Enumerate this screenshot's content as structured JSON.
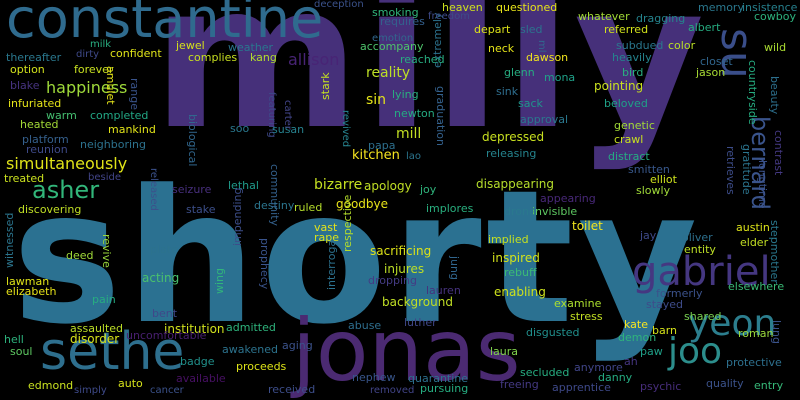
{
  "words": [
    {
      "text": "milly",
      "color": "#46307a"
    },
    {
      "text": "shorty",
      "color": "#2b7191"
    },
    {
      "text": "jonas",
      "color": "#4b2a72"
    },
    {
      "text": "constantine",
      "color": "#2f6b8e"
    },
    {
      "text": "sethe",
      "color": "#2e6f8e"
    },
    {
      "text": "gabriel",
      "color": "#453781"
    },
    {
      "text": "yeon",
      "color": "#2c7e8e"
    },
    {
      "text": "joo",
      "color": "#2c8e8c"
    },
    {
      "text": "su",
      "color": "#3a4e8a"
    },
    {
      "text": "asher",
      "color": "#32b67a"
    },
    {
      "text": "bernard",
      "color": "#3a548c"
    },
    {
      "text": "happiness",
      "color": "#9fda3a"
    },
    {
      "text": "simultaneously",
      "color": "#dfe318"
    },
    {
      "text": "allison",
      "color": "#482475"
    },
    {
      "text": "reality",
      "color": "#bddf26"
    },
    {
      "text": "sin",
      "color": "#e5e419"
    },
    {
      "text": "mill",
      "color": "#c2df23"
    },
    {
      "text": "kitchen",
      "color": "#f6e620"
    },
    {
      "text": "bizarre",
      "color": "#c5e021"
    },
    {
      "text": "apology",
      "color": "#c0df25"
    },
    {
      "text": "goodbye",
      "color": "#e8e419"
    },
    {
      "text": "depressed",
      "color": "#c8e020"
    },
    {
      "text": "disappearing",
      "color": "#b5de2b"
    },
    {
      "text": "invisible",
      "color": "#5ec962"
    },
    {
      "text": "toilet",
      "color": "#f1e51d"
    },
    {
      "text": "inspired",
      "color": "#d2e21b"
    },
    {
      "text": "sacrificing",
      "color": "#dde318"
    },
    {
      "text": "stress",
      "color": "#c2df23"
    },
    {
      "text": "disorder",
      "color": "#d8e219"
    },
    {
      "text": "treated",
      "color": "#cae11f"
    },
    {
      "text": "lawman",
      "color": "#dfe318"
    },
    {
      "text": "elizabeth",
      "color": "#e7e419"
    },
    {
      "text": "assaulted",
      "color": "#bddf26"
    },
    {
      "text": "institution",
      "color": "#d0e11c"
    },
    {
      "text": "acting",
      "color": "#4ac16d"
    },
    {
      "text": "pain",
      "color": "#27ad81"
    },
    {
      "text": "deed",
      "color": "#a0da39"
    },
    {
      "text": "heaven",
      "color": "#cde11d"
    },
    {
      "text": "smoking",
      "color": "#31b57b"
    },
    {
      "text": "questioned",
      "color": "#e7e419"
    },
    {
      "text": "whatever",
      "color": "#a2da37"
    },
    {
      "text": "dragging",
      "color": "#25848e"
    },
    {
      "text": "memory",
      "color": "#2a788e"
    },
    {
      "text": "insistence",
      "color": "#26818e"
    },
    {
      "text": "cowboy",
      "color": "#2db27d"
    },
    {
      "text": "albert",
      "color": "#26ad81"
    },
    {
      "text": "referred",
      "color": "#d2e21b"
    },
    {
      "text": "color",
      "color": "#bbdf27"
    },
    {
      "text": "wild",
      "color": "#aadc32"
    },
    {
      "text": "subdued",
      "color": "#2a778e"
    },
    {
      "text": "heavily",
      "color": "#25848e"
    },
    {
      "text": "closet",
      "color": "#31668e"
    },
    {
      "text": "jason",
      "color": "#a8db34"
    },
    {
      "text": "bird",
      "color": "#29af7f"
    },
    {
      "text": "countryside",
      "color": "#26ad81"
    },
    {
      "text": "beauty",
      "color": "#2d708e"
    },
    {
      "text": "pointing",
      "color": "#cae11f"
    },
    {
      "text": "beloved",
      "color": "#1fa187"
    },
    {
      "text": "genetic",
      "color": "#a2da37"
    },
    {
      "text": "crawl",
      "color": "#c8e020"
    },
    {
      "text": "distract",
      "color": "#25ac82"
    },
    {
      "text": "smitten",
      "color": "#38588c"
    },
    {
      "text": "elliot",
      "color": "#cde11d"
    },
    {
      "text": "slowly",
      "color": "#a0da39"
    },
    {
      "text": "retrieves",
      "color": "#3d4d8a"
    },
    {
      "text": "gratitude",
      "color": "#2b748e"
    },
    {
      "text": "longtime",
      "color": "#3b528b"
    },
    {
      "text": "contrast",
      "color": "#443983"
    },
    {
      "text": "austin",
      "color": "#dce319"
    },
    {
      "text": "elder",
      "color": "#c2df23"
    },
    {
      "text": "stepmother",
      "color": "#2a788e"
    },
    {
      "text": "oliver",
      "color": "#2d708e"
    },
    {
      "text": "entity",
      "color": "#bddf26"
    },
    {
      "text": "jay",
      "color": "#3e4a89"
    },
    {
      "text": "elsewhere",
      "color": "#3aba76"
    },
    {
      "text": "formerly",
      "color": "#3b528b"
    },
    {
      "text": "stayed",
      "color": "#3e4c8a"
    },
    {
      "text": "shared",
      "color": "#7ad151"
    },
    {
      "text": "kate",
      "color": "#f8e621"
    },
    {
      "text": "barn",
      "color": "#d5e21a"
    },
    {
      "text": "demon",
      "color": "#2fb47c"
    },
    {
      "text": "lung",
      "color": "#3a538b"
    },
    {
      "text": "roman",
      "color": "#9bd93c"
    },
    {
      "text": "protective",
      "color": "#2d708e"
    },
    {
      "text": "paw",
      "color": "#1fa088"
    },
    {
      "text": "ah",
      "color": "#453581"
    },
    {
      "text": "quality",
      "color": "#3b528b"
    },
    {
      "text": "entry",
      "color": "#36b878"
    },
    {
      "text": "psychic",
      "color": "#472d7b"
    },
    {
      "text": "danny",
      "color": "#25ab82"
    },
    {
      "text": "apprentice",
      "color": "#3e4989"
    },
    {
      "text": "anymore",
      "color": "#404588"
    },
    {
      "text": "secluded",
      "color": "#27ad81"
    },
    {
      "text": "freeing",
      "color": "#443983"
    },
    {
      "text": "laura",
      "color": "#81d34d"
    },
    {
      "text": "disgusted",
      "color": "#21908d"
    },
    {
      "text": "examine",
      "color": "#ade02f"
    },
    {
      "text": "enabling",
      "color": "#cde11d"
    },
    {
      "text": "rebuff",
      "color": "#3bbb75"
    },
    {
      "text": "lauren",
      "color": "#46327e"
    },
    {
      "text": "luther",
      "color": "#3f4788"
    },
    {
      "text": "background",
      "color": "#c0df25"
    },
    {
      "text": "injures",
      "color": "#bddf26"
    },
    {
      "text": "abuse",
      "color": "#2e6e8e"
    },
    {
      "text": "dropping",
      "color": "#443b84"
    },
    {
      "text": "respective",
      "color": "#b5de2b"
    },
    {
      "text": "interrogates",
      "color": "#2c718e"
    },
    {
      "text": "rape",
      "color": "#dae319"
    },
    {
      "text": "vast",
      "color": "#e5e419"
    },
    {
      "text": "jung",
      "color": "#31668e"
    },
    {
      "text": "implied",
      "color": "#c5e021"
    },
    {
      "text": "drone",
      "color": "#2a788e"
    },
    {
      "text": "appearing",
      "color": "#482878"
    },
    {
      "text": "implores",
      "color": "#29af7f"
    },
    {
      "text": "ruled",
      "color": "#b5de2b"
    },
    {
      "text": "destiny",
      "color": "#2b758e"
    },
    {
      "text": "stake",
      "color": "#3c4f8a"
    },
    {
      "text": "lethal",
      "color": "#1f9a8a"
    },
    {
      "text": "seizure",
      "color": "#472f7d"
    },
    {
      "text": "joy",
      "color": "#2fb47c"
    },
    {
      "text": "community",
      "color": "#34618d"
    },
    {
      "text": "featuring",
      "color": "#3e4989"
    },
    {
      "text": "prophecy",
      "color": "#3a548c"
    },
    {
      "text": "impending",
      "color": "#3d4e8a"
    },
    {
      "text": "wing",
      "color": "#31b57b"
    },
    {
      "text": "plate",
      "color": "#2c728e"
    },
    {
      "text": "revive",
      "color": "#9bd93c"
    },
    {
      "text": "bent",
      "color": "#3f4889"
    },
    {
      "text": "admitted",
      "color": "#2eb37c"
    },
    {
      "text": "aging",
      "color": "#3b528b"
    },
    {
      "text": "awakened",
      "color": "#2c738e"
    },
    {
      "text": "badge",
      "color": "#21918c"
    },
    {
      "text": "uncomfortable",
      "color": "#481f70"
    },
    {
      "text": "proceeds",
      "color": "#dde318"
    },
    {
      "text": "available",
      "color": "#471063"
    },
    {
      "text": "received",
      "color": "#3d4e8a"
    },
    {
      "text": "nephew",
      "color": "#39568c"
    },
    {
      "text": "quarantine",
      "color": "#2d708e"
    },
    {
      "text": "pursuing",
      "color": "#26ad81"
    },
    {
      "text": "removed",
      "color": "#414487"
    },
    {
      "text": "auto",
      "color": "#d5e21a"
    },
    {
      "text": "cancer",
      "color": "#3b528b"
    },
    {
      "text": "simply",
      "color": "#3e4a89"
    },
    {
      "text": "edmond",
      "color": "#c8e020"
    },
    {
      "text": "soul",
      "color": "#5ec962"
    },
    {
      "text": "hell",
      "color": "#2db27d"
    },
    {
      "text": "witnessed",
      "color": "#2b758e"
    },
    {
      "text": "discovering",
      "color": "#c0df25"
    },
    {
      "text": "beside",
      "color": "#414487"
    },
    {
      "text": "released",
      "color": "#3b518b"
    },
    {
      "text": "reunion",
      "color": "#3e4a89"
    },
    {
      "text": "platform",
      "color": "#35608d"
    },
    {
      "text": "heated",
      "color": "#a2da37"
    },
    {
      "text": "infuriated",
      "color": "#e5e419"
    },
    {
      "text": "warm",
      "color": "#45bf70"
    },
    {
      "text": "blake",
      "color": "#46337f"
    },
    {
      "text": "option",
      "color": "#d2e21b"
    },
    {
      "text": "thereafter",
      "color": "#2a788e"
    },
    {
      "text": "dirty",
      "color": "#3e4989"
    },
    {
      "text": "milk",
      "color": "#28ae80"
    },
    {
      "text": "confident",
      "color": "#dfe318"
    },
    {
      "text": "jewel",
      "color": "#d5e21a"
    },
    {
      "text": "weather",
      "color": "#2a768e"
    },
    {
      "text": "complies",
      "color": "#c8e020"
    },
    {
      "text": "kang",
      "color": "#b2dd2d"
    },
    {
      "text": "forever",
      "color": "#c8e020"
    },
    {
      "text": "amulet",
      "color": "#e5e419"
    },
    {
      "text": "range",
      "color": "#3a548c"
    },
    {
      "text": "completed",
      "color": "#22a785"
    },
    {
      "text": "mankind",
      "color": "#e2e418"
    },
    {
      "text": "neighboring",
      "color": "#2c728e"
    },
    {
      "text": "biological",
      "color": "#31678e"
    },
    {
      "text": "soo",
      "color": "#2a788e"
    },
    {
      "text": "susan",
      "color": "#26818e"
    },
    {
      "text": "carter",
      "color": "#414487"
    },
    {
      "text": "stark",
      "color": "#c5e021"
    },
    {
      "text": "revived",
      "color": "#26828e"
    },
    {
      "text": "lying",
      "color": "#29af7f"
    },
    {
      "text": "newton",
      "color": "#25ab82"
    },
    {
      "text": "papa",
      "color": "#2d708e"
    },
    {
      "text": "lao",
      "color": "#2b758e"
    },
    {
      "text": "extremely",
      "color": "#2c728e"
    },
    {
      "text": "graduation",
      "color": "#34618d"
    },
    {
      "text": "sink",
      "color": "#2e6e8e"
    },
    {
      "text": "sack",
      "color": "#1f958b"
    },
    {
      "text": "approval",
      "color": "#2a788e"
    },
    {
      "text": "releasing",
      "color": "#25848e"
    },
    {
      "text": "glenn",
      "color": "#26ad81"
    },
    {
      "text": "mona",
      "color": "#1fa188"
    },
    {
      "text": "dawson",
      "color": "#f1e51d"
    },
    {
      "text": "neck",
      "color": "#e5e419"
    },
    {
      "text": "reached",
      "color": "#27ad81"
    },
    {
      "text": "accompany",
      "color": "#4ec36b"
    },
    {
      "text": "emotion",
      "color": "#31678e"
    },
    {
      "text": "requires",
      "color": "#34608d"
    },
    {
      "text": "depart",
      "color": "#dde318"
    },
    {
      "text": "freedom",
      "color": "#3e4a89"
    },
    {
      "text": "sled",
      "color": "#2c738e"
    },
    {
      "text": "ml",
      "color": "#31678e"
    },
    {
      "text": "deception",
      "color": "#3b528b"
    }
  ]
}
